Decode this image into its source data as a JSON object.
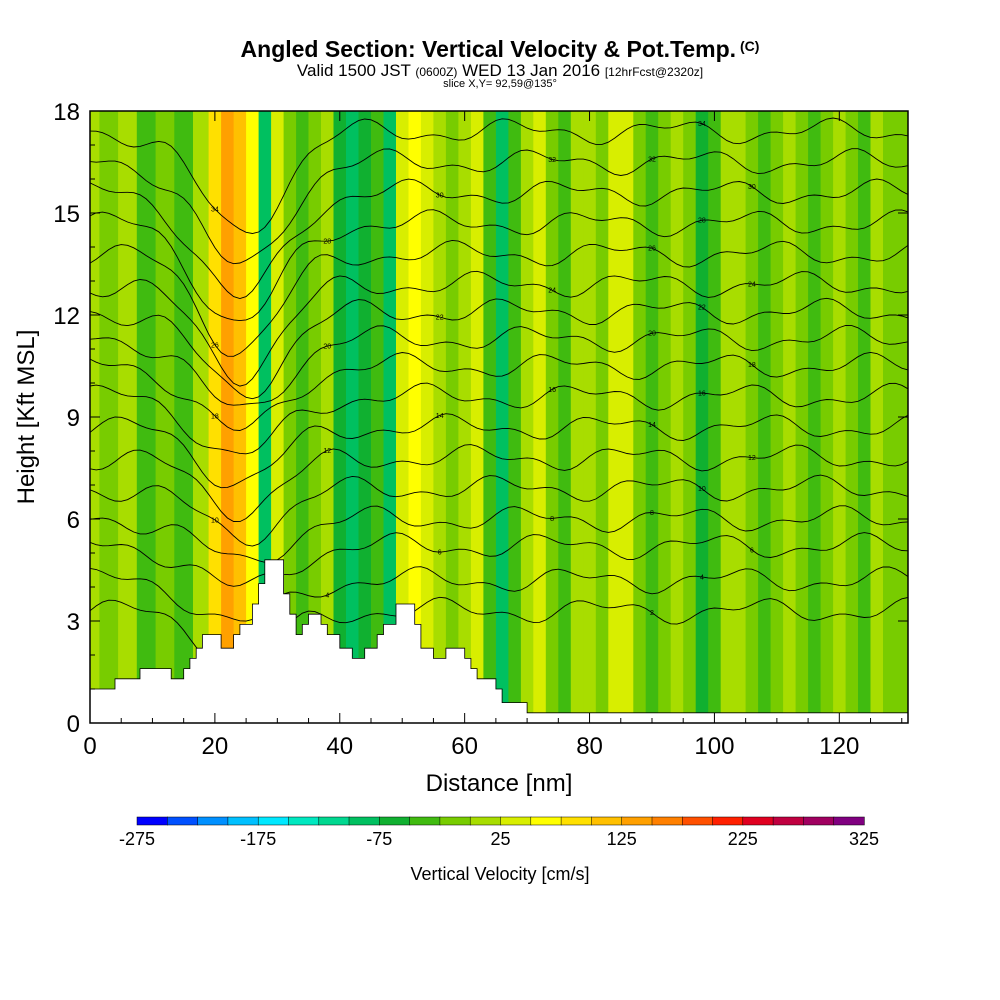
{
  "chart_data": {
    "type": "heatmap",
    "title": "Angled Section: Vertical Velocity & Pot.Temp.",
    "title_tag": "(C)",
    "subtitle_main": "Valid 1500 JST",
    "subtitle_utc": "(0600Z)",
    "subtitle_date": "WED 13 Jan 2016",
    "subtitle_fcst": "[12hrFcst@2320z]",
    "slice_label": "slice X,Y= 92,59@135°",
    "xlabel": "Distance [nm]",
    "ylabel": "Height [Kft MSL]",
    "xlim": [
      0,
      131
    ],
    "ylim": [
      0,
      18
    ],
    "x_ticks": [
      0,
      20,
      40,
      60,
      80,
      100,
      120
    ],
    "y_ticks": [
      0,
      3,
      6,
      9,
      12,
      15,
      18
    ],
    "colorbar": {
      "title": "Vertical Velocity [cm/s]",
      "min": -275,
      "max": 325,
      "step": 25,
      "tick_labels": [
        -275,
        -175,
        -75,
        25,
        125,
        225,
        325
      ],
      "colors": [
        "#0000ff",
        "#0050ff",
        "#0090ff",
        "#00c0ff",
        "#00e8ff",
        "#00e8c0",
        "#00d890",
        "#00c060",
        "#10b030",
        "#40bb10",
        "#78cc00",
        "#a8dd00",
        "#d8ee00",
        "#ffff00",
        "#ffe000",
        "#ffc000",
        "#ffa000",
        "#ff8000",
        "#ff5000",
        "#ff2000",
        "#e00020",
        "#c00040",
        "#a00060",
        "#800080"
      ]
    },
    "columns": [
      {
        "x": 0,
        "v": 10
      },
      {
        "x": 3,
        "v": -25
      },
      {
        "x": 6,
        "v": 20
      },
      {
        "x": 9,
        "v": -30
      },
      {
        "x": 12,
        "v": -10
      },
      {
        "x": 15,
        "v": -45
      },
      {
        "x": 18,
        "v": 5
      },
      {
        "x": 20,
        "v": 85
      },
      {
        "x": 22,
        "v": 125
      },
      {
        "x": 24,
        "v": 110
      },
      {
        "x": 26,
        "v": 70
      },
      {
        "x": 28,
        "v": -80
      },
      {
        "x": 30,
        "v": 40
      },
      {
        "x": 32,
        "v": -10
      },
      {
        "x": 34,
        "v": -50
      },
      {
        "x": 36,
        "v": -20
      },
      {
        "x": 38,
        "v": 10
      },
      {
        "x": 40,
        "v": -60
      },
      {
        "x": 42,
        "v": -95
      },
      {
        "x": 44,
        "v": -70
      },
      {
        "x": 46,
        "v": -35
      },
      {
        "x": 48,
        "v": -100
      },
      {
        "x": 50,
        "v": 25
      },
      {
        "x": 52,
        "v": 60
      },
      {
        "x": 54,
        "v": 40
      },
      {
        "x": 56,
        "v": 5
      },
      {
        "x": 58,
        "v": -20
      },
      {
        "x": 60,
        "v": 0
      },
      {
        "x": 62,
        "v": 35
      },
      {
        "x": 64,
        "v": -45
      },
      {
        "x": 66,
        "v": -90
      },
      {
        "x": 68,
        "v": -40
      },
      {
        "x": 70,
        "v": 15
      },
      {
        "x": 72,
        "v": 30
      },
      {
        "x": 74,
        "v": -10
      },
      {
        "x": 76,
        "v": -30
      },
      {
        "x": 78,
        "v": 10
      },
      {
        "x": 80,
        "v": 20
      },
      {
        "x": 82,
        "v": -20
      },
      {
        "x": 84,
        "v": 25
      },
      {
        "x": 86,
        "v": 40
      },
      {
        "x": 88,
        "v": -15
      },
      {
        "x": 90,
        "v": -40
      },
      {
        "x": 92,
        "v": -20
      },
      {
        "x": 94,
        "v": 5
      },
      {
        "x": 96,
        "v": -25
      },
      {
        "x": 98,
        "v": -55
      },
      {
        "x": 100,
        "v": -35
      },
      {
        "x": 102,
        "v": 0
      },
      {
        "x": 104,
        "v": 15
      },
      {
        "x": 106,
        "v": -10
      },
      {
        "x": 108,
        "v": -30
      },
      {
        "x": 110,
        "v": -15
      },
      {
        "x": 112,
        "v": 0
      },
      {
        "x": 114,
        "v": -25
      },
      {
        "x": 116,
        "v": -50
      },
      {
        "x": 118,
        "v": -20
      },
      {
        "x": 120,
        "v": 10
      },
      {
        "x": 122,
        "v": -10
      },
      {
        "x": 124,
        "v": -35
      },
      {
        "x": 126,
        "v": 5
      },
      {
        "x": 128,
        "v": -20
      },
      {
        "x": 130,
        "v": -5
      }
    ],
    "terrain": [
      [
        0,
        1.0
      ],
      [
        4,
        1.0
      ],
      [
        4,
        1.3
      ],
      [
        8,
        1.3
      ],
      [
        8,
        1.6
      ],
      [
        13,
        1.6
      ],
      [
        13,
        1.3
      ],
      [
        15,
        1.3
      ],
      [
        15,
        1.6
      ],
      [
        16,
        1.6
      ],
      [
        16,
        1.9
      ],
      [
        17,
        1.9
      ],
      [
        17,
        2.2
      ],
      [
        18,
        2.2
      ],
      [
        18,
        2.6
      ],
      [
        21,
        2.6
      ],
      [
        21,
        2.2
      ],
      [
        23,
        2.2
      ],
      [
        23,
        2.6
      ],
      [
        24,
        2.6
      ],
      [
        24,
        2.9
      ],
      [
        26,
        2.9
      ],
      [
        26,
        3.5
      ],
      [
        27,
        3.5
      ],
      [
        27,
        4.1
      ],
      [
        28,
        4.1
      ],
      [
        28,
        4.8
      ],
      [
        31,
        4.8
      ],
      [
        31,
        3.8
      ],
      [
        32,
        3.8
      ],
      [
        32,
        3.2
      ],
      [
        33,
        3.2
      ],
      [
        33,
        2.6
      ],
      [
        34,
        2.6
      ],
      [
        34,
        2.9
      ],
      [
        35,
        2.9
      ],
      [
        35,
        3.2
      ],
      [
        37,
        3.2
      ],
      [
        37,
        2.9
      ],
      [
        38,
        2.9
      ],
      [
        38,
        2.6
      ],
      [
        40,
        2.6
      ],
      [
        40,
        2.2
      ],
      [
        42,
        2.2
      ],
      [
        42,
        1.9
      ],
      [
        44,
        1.9
      ],
      [
        44,
        2.2
      ],
      [
        46,
        2.2
      ],
      [
        46,
        2.6
      ],
      [
        47,
        2.6
      ],
      [
        47,
        2.9
      ],
      [
        49,
        2.9
      ],
      [
        49,
        3.5
      ],
      [
        52,
        3.5
      ],
      [
        52,
        2.9
      ],
      [
        53,
        2.9
      ],
      [
        53,
        2.2
      ],
      [
        55,
        2.2
      ],
      [
        55,
        1.9
      ],
      [
        57,
        1.9
      ],
      [
        57,
        2.2
      ],
      [
        60,
        2.2
      ],
      [
        60,
        1.9
      ],
      [
        61,
        1.9
      ],
      [
        61,
        1.6
      ],
      [
        62,
        1.6
      ],
      [
        62,
        1.3
      ],
      [
        65,
        1.3
      ],
      [
        65,
        1.0
      ],
      [
        66,
        1.0
      ],
      [
        66,
        0.6
      ],
      [
        70,
        0.6
      ],
      [
        70,
        0.3
      ],
      [
        131,
        0.3
      ]
    ],
    "contours": [
      {
        "label": "2",
        "base": 3.3,
        "amp": 1.4
      },
      {
        "label": "4",
        "base": 4.2,
        "amp": 1.3
      },
      {
        "label": "6",
        "base": 5.2,
        "amp": 1.3
      },
      {
        "label": "8",
        "base": 6.0,
        "amp": 1.3
      },
      {
        "label": "10",
        "base": 6.9,
        "amp": 1.4
      },
      {
        "label": "12",
        "base": 7.8,
        "amp": 1.5
      },
      {
        "label": "14",
        "base": 8.7,
        "amp": 1.6
      },
      {
        "label": "16",
        "base": 9.6,
        "amp": 1.8
      },
      {
        "label": "18",
        "base": 10.5,
        "amp": 2.0
      },
      {
        "label": "20",
        "base": 11.3,
        "amp": 2.2
      },
      {
        "label": "22",
        "base": 12.1,
        "amp": 2.4
      },
      {
        "label": "24",
        "base": 12.9,
        "amp": 2.6
      },
      {
        "label": "26",
        "base": 13.8,
        "amp": 2.8
      },
      {
        "label": "28",
        "base": 14.7,
        "amp": 3.0
      },
      {
        "label": "30",
        "base": 15.6,
        "amp": 3.2
      },
      {
        "label": "32",
        "base": 16.5,
        "amp": 3.2
      },
      {
        "label": "34",
        "base": 17.4,
        "amp": 3.0
      }
    ]
  }
}
